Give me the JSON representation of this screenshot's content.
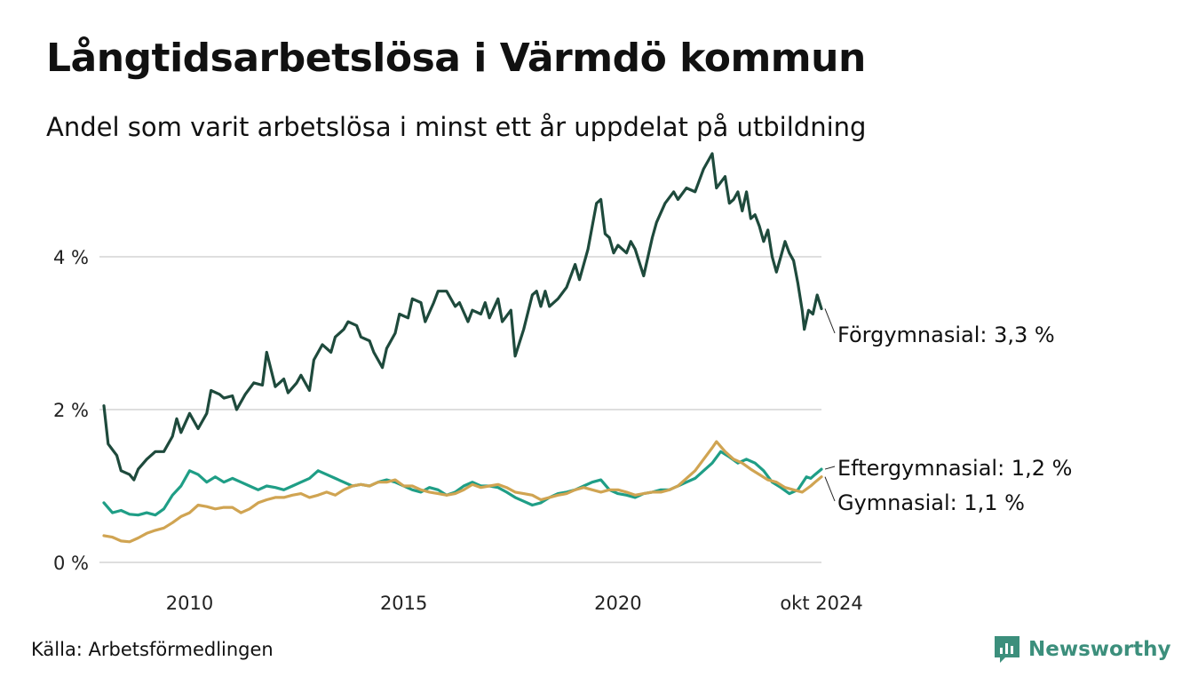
{
  "title": "Långtidsarbetslösa i Värmdö kommun",
  "subtitle": "Andel som varit arbetslösa i minst ett år uppdelat på utbildning",
  "source": "Källa: Arbetsförmedlingen",
  "brand": {
    "name": "Newsworthy",
    "icon": "newsworthy-logo-icon",
    "color": "#3c8f7c"
  },
  "chart_data": {
    "type": "line",
    "title": "Långtidsarbetslösa i Värmdö kommun",
    "xlabel": "",
    "ylabel": "",
    "xlim": [
      2008.0,
      2024.75
    ],
    "ylim": [
      0,
      5.5
    ],
    "grid": true,
    "y_ticks": [
      {
        "value": 0,
        "label": "0 %"
      },
      {
        "value": 2,
        "label": "2 %"
      },
      {
        "value": 4,
        "label": "4 %"
      }
    ],
    "x_ticks": [
      {
        "value": 2010,
        "label": "2010"
      },
      {
        "value": 2015,
        "label": "2015"
      },
      {
        "value": 2020,
        "label": "2020"
      },
      {
        "value": 2024.75,
        "label": "okt 2024"
      }
    ],
    "series": [
      {
        "name": "Förgymnasial",
        "label": "Förgymnasial: 3,3 %",
        "color": "#1e4a3c",
        "points": [
          [
            2008.0,
            2.05
          ],
          [
            2008.1,
            1.55
          ],
          [
            2008.3,
            1.4
          ],
          [
            2008.4,
            1.2
          ],
          [
            2008.6,
            1.15
          ],
          [
            2008.7,
            1.08
          ],
          [
            2008.8,
            1.22
          ],
          [
            2009.0,
            1.35
          ],
          [
            2009.2,
            1.45
          ],
          [
            2009.4,
            1.45
          ],
          [
            2009.6,
            1.65
          ],
          [
            2009.7,
            1.88
          ],
          [
            2009.8,
            1.7
          ],
          [
            2010.0,
            1.95
          ],
          [
            2010.2,
            1.75
          ],
          [
            2010.4,
            1.95
          ],
          [
            2010.5,
            2.25
          ],
          [
            2010.7,
            2.2
          ],
          [
            2010.8,
            2.15
          ],
          [
            2011.0,
            2.18
          ],
          [
            2011.1,
            2.0
          ],
          [
            2011.3,
            2.2
          ],
          [
            2011.5,
            2.35
          ],
          [
            2011.7,
            2.32
          ],
          [
            2011.8,
            2.75
          ],
          [
            2012.0,
            2.3
          ],
          [
            2012.2,
            2.4
          ],
          [
            2012.3,
            2.22
          ],
          [
            2012.5,
            2.35
          ],
          [
            2012.6,
            2.45
          ],
          [
            2012.8,
            2.25
          ],
          [
            2012.9,
            2.65
          ],
          [
            2013.1,
            2.85
          ],
          [
            2013.3,
            2.75
          ],
          [
            2013.4,
            2.95
          ],
          [
            2013.6,
            3.05
          ],
          [
            2013.7,
            3.15
          ],
          [
            2013.9,
            3.1
          ],
          [
            2014.0,
            2.95
          ],
          [
            2014.2,
            2.9
          ],
          [
            2014.3,
            2.75
          ],
          [
            2014.5,
            2.55
          ],
          [
            2014.6,
            2.8
          ],
          [
            2014.8,
            3.0
          ],
          [
            2014.9,
            3.25
          ],
          [
            2015.1,
            3.2
          ],
          [
            2015.2,
            3.45
          ],
          [
            2015.4,
            3.4
          ],
          [
            2015.5,
            3.15
          ],
          [
            2015.7,
            3.4
          ],
          [
            2015.8,
            3.55
          ],
          [
            2016.0,
            3.55
          ],
          [
            2016.2,
            3.35
          ],
          [
            2016.3,
            3.4
          ],
          [
            2016.5,
            3.15
          ],
          [
            2016.6,
            3.3
          ],
          [
            2016.8,
            3.25
          ],
          [
            2016.9,
            3.4
          ],
          [
            2017.0,
            3.2
          ],
          [
            2017.2,
            3.45
          ],
          [
            2017.3,
            3.15
          ],
          [
            2017.5,
            3.3
          ],
          [
            2017.6,
            2.7
          ],
          [
            2017.8,
            3.05
          ],
          [
            2018.0,
            3.5
          ],
          [
            2018.1,
            3.55
          ],
          [
            2018.2,
            3.35
          ],
          [
            2018.3,
            3.55
          ],
          [
            2018.4,
            3.35
          ],
          [
            2018.6,
            3.45
          ],
          [
            2018.8,
            3.6
          ],
          [
            2019.0,
            3.9
          ],
          [
            2019.1,
            3.7
          ],
          [
            2019.3,
            4.1
          ],
          [
            2019.4,
            4.4
          ],
          [
            2019.5,
            4.7
          ],
          [
            2019.6,
            4.75
          ],
          [
            2019.7,
            4.3
          ],
          [
            2019.8,
            4.25
          ],
          [
            2019.9,
            4.05
          ],
          [
            2020.0,
            4.15
          ],
          [
            2020.2,
            4.05
          ],
          [
            2020.3,
            4.2
          ],
          [
            2020.4,
            4.1
          ],
          [
            2020.6,
            3.75
          ],
          [
            2020.8,
            4.25
          ],
          [
            2020.9,
            4.45
          ],
          [
            2021.1,
            4.7
          ],
          [
            2021.3,
            4.85
          ],
          [
            2021.4,
            4.75
          ],
          [
            2021.6,
            4.9
          ],
          [
            2021.8,
            4.85
          ],
          [
            2021.9,
            5.0
          ],
          [
            2022.0,
            5.15
          ],
          [
            2022.2,
            5.35
          ],
          [
            2022.3,
            4.9
          ],
          [
            2022.5,
            5.05
          ],
          [
            2022.6,
            4.7
          ],
          [
            2022.7,
            4.75
          ],
          [
            2022.8,
            4.85
          ],
          [
            2022.9,
            4.6
          ],
          [
            2023.0,
            4.85
          ],
          [
            2023.1,
            4.5
          ],
          [
            2023.2,
            4.55
          ],
          [
            2023.3,
            4.4
          ],
          [
            2023.4,
            4.2
          ],
          [
            2023.5,
            4.35
          ],
          [
            2023.6,
            4.0
          ],
          [
            2023.7,
            3.8
          ],
          [
            2023.8,
            4.0
          ],
          [
            2023.9,
            4.2
          ],
          [
            2024.0,
            4.05
          ],
          [
            2024.1,
            3.95
          ],
          [
            2024.2,
            3.65
          ],
          [
            2024.3,
            3.3
          ],
          [
            2024.35,
            3.05
          ],
          [
            2024.45,
            3.3
          ],
          [
            2024.55,
            3.25
          ],
          [
            2024.65,
            3.5
          ],
          [
            2024.75,
            3.32
          ]
        ]
      },
      {
        "name": "Eftergymnasial",
        "label": "Eftergymnasial: 1,2 %",
        "color": "#1f9e86",
        "points": [
          [
            2008.0,
            0.78
          ],
          [
            2008.2,
            0.65
          ],
          [
            2008.4,
            0.68
          ],
          [
            2008.6,
            0.63
          ],
          [
            2008.8,
            0.62
          ],
          [
            2009.0,
            0.65
          ],
          [
            2009.2,
            0.62
          ],
          [
            2009.4,
            0.7
          ],
          [
            2009.6,
            0.88
          ],
          [
            2009.8,
            1.0
          ],
          [
            2010.0,
            1.2
          ],
          [
            2010.2,
            1.15
          ],
          [
            2010.4,
            1.05
          ],
          [
            2010.6,
            1.12
          ],
          [
            2010.8,
            1.05
          ],
          [
            2011.0,
            1.1
          ],
          [
            2011.2,
            1.05
          ],
          [
            2011.4,
            1.0
          ],
          [
            2011.6,
            0.95
          ],
          [
            2011.8,
            1.0
          ],
          [
            2012.0,
            0.98
          ],
          [
            2012.2,
            0.95
          ],
          [
            2012.4,
            1.0
          ],
          [
            2012.6,
            1.05
          ],
          [
            2012.8,
            1.1
          ],
          [
            2013.0,
            1.2
          ],
          [
            2013.2,
            1.15
          ],
          [
            2013.4,
            1.1
          ],
          [
            2013.6,
            1.05
          ],
          [
            2013.8,
            1.0
          ],
          [
            2014.0,
            1.02
          ],
          [
            2014.2,
            1.0
          ],
          [
            2014.4,
            1.05
          ],
          [
            2014.6,
            1.08
          ],
          [
            2014.8,
            1.05
          ],
          [
            2015.0,
            1.0
          ],
          [
            2015.2,
            0.95
          ],
          [
            2015.4,
            0.92
          ],
          [
            2015.6,
            0.98
          ],
          [
            2015.8,
            0.95
          ],
          [
            2016.0,
            0.88
          ],
          [
            2016.2,
            0.92
          ],
          [
            2016.4,
            1.0
          ],
          [
            2016.6,
            1.05
          ],
          [
            2016.8,
            1.0
          ],
          [
            2017.0,
            1.0
          ],
          [
            2017.2,
            0.98
          ],
          [
            2017.4,
            0.92
          ],
          [
            2017.6,
            0.85
          ],
          [
            2017.8,
            0.8
          ],
          [
            2018.0,
            0.75
          ],
          [
            2018.2,
            0.78
          ],
          [
            2018.4,
            0.85
          ],
          [
            2018.6,
            0.9
          ],
          [
            2018.8,
            0.92
          ],
          [
            2019.0,
            0.95
          ],
          [
            2019.2,
            1.0
          ],
          [
            2019.4,
            1.05
          ],
          [
            2019.6,
            1.08
          ],
          [
            2019.8,
            0.95
          ],
          [
            2020.0,
            0.9
          ],
          [
            2020.2,
            0.88
          ],
          [
            2020.4,
            0.85
          ],
          [
            2020.6,
            0.9
          ],
          [
            2020.8,
            0.92
          ],
          [
            2021.0,
            0.95
          ],
          [
            2021.2,
            0.95
          ],
          [
            2021.4,
            1.0
          ],
          [
            2021.6,
            1.05
          ],
          [
            2021.8,
            1.1
          ],
          [
            2022.0,
            1.2
          ],
          [
            2022.2,
            1.3
          ],
          [
            2022.4,
            1.45
          ],
          [
            2022.6,
            1.38
          ],
          [
            2022.8,
            1.3
          ],
          [
            2023.0,
            1.35
          ],
          [
            2023.2,
            1.3
          ],
          [
            2023.4,
            1.2
          ],
          [
            2023.6,
            1.05
          ],
          [
            2023.8,
            0.98
          ],
          [
            2024.0,
            0.9
          ],
          [
            2024.2,
            0.95
          ],
          [
            2024.4,
            1.12
          ],
          [
            2024.5,
            1.1
          ],
          [
            2024.6,
            1.15
          ],
          [
            2024.75,
            1.22
          ]
        ]
      },
      {
        "name": "Gymnasial",
        "label": "Gymnasial: 1,1 %",
        "color": "#d0a452",
        "points": [
          [
            2008.0,
            0.35
          ],
          [
            2008.2,
            0.33
          ],
          [
            2008.4,
            0.28
          ],
          [
            2008.6,
            0.27
          ],
          [
            2008.8,
            0.32
          ],
          [
            2009.0,
            0.38
          ],
          [
            2009.2,
            0.42
          ],
          [
            2009.4,
            0.45
          ],
          [
            2009.6,
            0.52
          ],
          [
            2009.8,
            0.6
          ],
          [
            2010.0,
            0.65
          ],
          [
            2010.2,
            0.75
          ],
          [
            2010.4,
            0.73
          ],
          [
            2010.6,
            0.7
          ],
          [
            2010.8,
            0.72
          ],
          [
            2011.0,
            0.72
          ],
          [
            2011.2,
            0.65
          ],
          [
            2011.4,
            0.7
          ],
          [
            2011.6,
            0.78
          ],
          [
            2011.8,
            0.82
          ],
          [
            2012.0,
            0.85
          ],
          [
            2012.2,
            0.85
          ],
          [
            2012.4,
            0.88
          ],
          [
            2012.6,
            0.9
          ],
          [
            2012.8,
            0.85
          ],
          [
            2013.0,
            0.88
          ],
          [
            2013.2,
            0.92
          ],
          [
            2013.4,
            0.88
          ],
          [
            2013.6,
            0.95
          ],
          [
            2013.8,
            1.0
          ],
          [
            2014.0,
            1.02
          ],
          [
            2014.2,
            1.0
          ],
          [
            2014.4,
            1.05
          ],
          [
            2014.6,
            1.05
          ],
          [
            2014.8,
            1.08
          ],
          [
            2015.0,
            1.0
          ],
          [
            2015.2,
            1.0
          ],
          [
            2015.4,
            0.95
          ],
          [
            2015.6,
            0.92
          ],
          [
            2015.8,
            0.9
          ],
          [
            2016.0,
            0.88
          ],
          [
            2016.2,
            0.9
          ],
          [
            2016.4,
            0.95
          ],
          [
            2016.6,
            1.02
          ],
          [
            2016.8,
            0.98
          ],
          [
            2017.0,
            1.0
          ],
          [
            2017.2,
            1.02
          ],
          [
            2017.4,
            0.98
          ],
          [
            2017.6,
            0.92
          ],
          [
            2017.8,
            0.9
          ],
          [
            2018.0,
            0.88
          ],
          [
            2018.2,
            0.82
          ],
          [
            2018.4,
            0.85
          ],
          [
            2018.6,
            0.88
          ],
          [
            2018.8,
            0.9
          ],
          [
            2019.0,
            0.95
          ],
          [
            2019.2,
            0.98
          ],
          [
            2019.4,
            0.95
          ],
          [
            2019.6,
            0.92
          ],
          [
            2019.8,
            0.95
          ],
          [
            2020.0,
            0.95
          ],
          [
            2020.2,
            0.92
          ],
          [
            2020.4,
            0.88
          ],
          [
            2020.6,
            0.9
          ],
          [
            2020.8,
            0.92
          ],
          [
            2021.0,
            0.92
          ],
          [
            2021.2,
            0.95
          ],
          [
            2021.4,
            1.0
          ],
          [
            2021.6,
            1.1
          ],
          [
            2021.8,
            1.2
          ],
          [
            2022.0,
            1.35
          ],
          [
            2022.2,
            1.5
          ],
          [
            2022.3,
            1.58
          ],
          [
            2022.5,
            1.45
          ],
          [
            2022.7,
            1.35
          ],
          [
            2022.9,
            1.3
          ],
          [
            2023.1,
            1.22
          ],
          [
            2023.3,
            1.15
          ],
          [
            2023.5,
            1.08
          ],
          [
            2023.7,
            1.05
          ],
          [
            2023.9,
            0.98
          ],
          [
            2024.1,
            0.95
          ],
          [
            2024.3,
            0.92
          ],
          [
            2024.5,
            1.0
          ],
          [
            2024.6,
            1.05
          ],
          [
            2024.75,
            1.12
          ]
        ]
      }
    ]
  }
}
